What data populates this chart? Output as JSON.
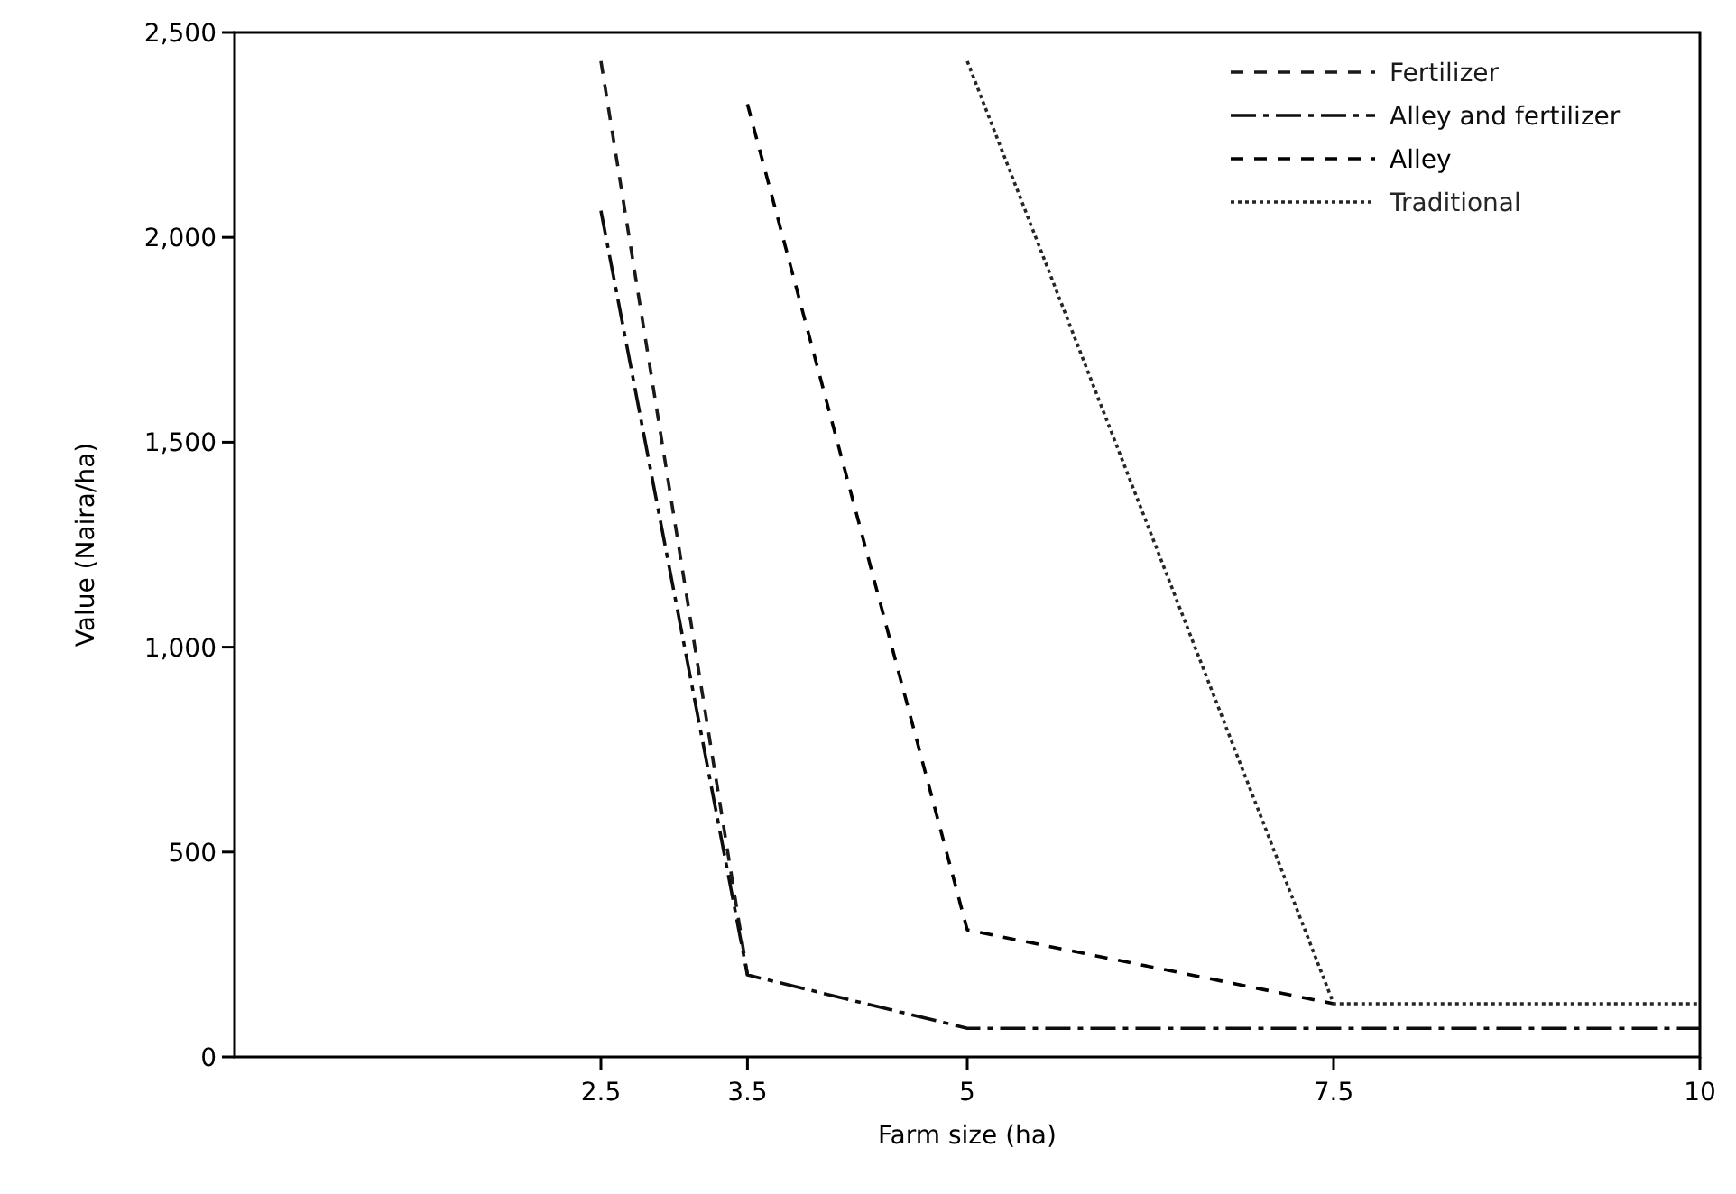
{
  "chart_data": {
    "type": "line",
    "xlabel": "Farm size (ha)",
    "ylabel": "Value (Naira/ha)",
    "xlim": [
      0,
      10
    ],
    "xticks": [
      2.5,
      3.5,
      5,
      7.5,
      10
    ],
    "ylim": [
      0,
      2500
    ],
    "yticks": [
      0,
      500,
      {
        "value": 1000,
        "label": "1,000"
      },
      {
        "value": 1500,
        "label": "1,500"
      },
      {
        "value": 2000,
        "label": "2,000"
      },
      {
        "value": 2500,
        "label": "2,500"
      }
    ],
    "grid": false,
    "legend": "top right",
    "marker": "none",
    "series": [
      {
        "name": "Fertilizer",
        "color": "#1a1a1a",
        "line_style": "dashed",
        "x": [
          2.5,
          3.5
        ],
        "values": [
          2430,
          200
        ]
      },
      {
        "name": "Alley and fertilizer",
        "color": "#0d0d0d",
        "line_style": "dashdot",
        "x": [
          2.5,
          3.5,
          5,
          10
        ],
        "values": [
          2065,
          200,
          70,
          70
        ]
      },
      {
        "name": "Alley",
        "color": "#000000",
        "line_style": "dashed",
        "x": [
          3.5,
          5,
          7.5
        ],
        "values": [
          2325,
          310,
          130
        ]
      },
      {
        "name": "Traditional",
        "color": "#262626",
        "line_style": "dotted",
        "x": [
          5,
          7.5,
          10
        ],
        "values": [
          2430,
          130,
          130
        ]
      }
    ]
  }
}
